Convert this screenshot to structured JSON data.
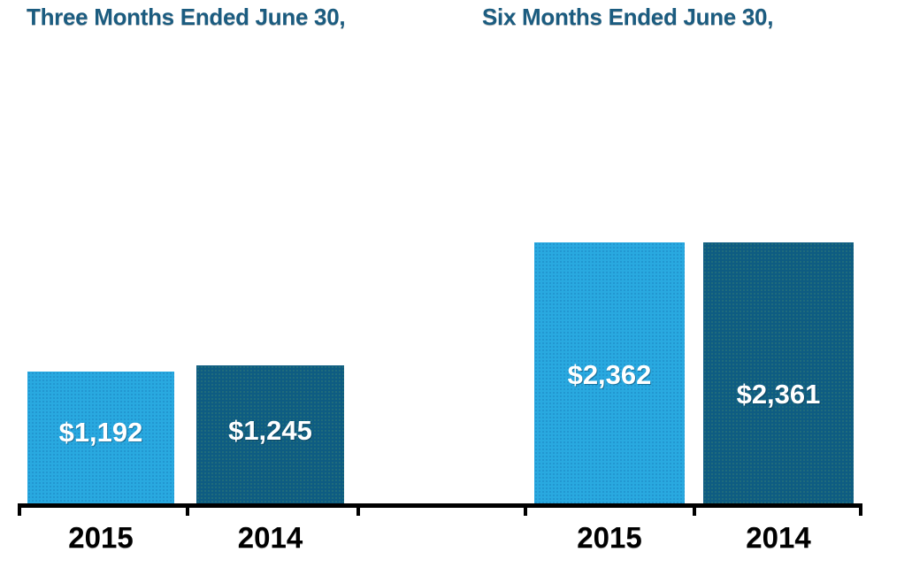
{
  "chart_data": {
    "type": "bar",
    "groups": [
      {
        "title": "Three Months Ended June 30,",
        "categories": [
          "2015",
          "2014"
        ],
        "bars": [
          {
            "label": "2015",
            "value": 1192,
            "display": "$1,192",
            "color_key": "light_blue"
          },
          {
            "label": "2014",
            "value": 1245,
            "display": "$1,245",
            "color_key": "dark_blue"
          }
        ]
      },
      {
        "title": "Six Months Ended June 30,",
        "categories": [
          "2015",
          "2014"
        ],
        "bars": [
          {
            "label": "2015",
            "value": 2362,
            "display": "$2,362",
            "color_key": "light_blue"
          },
          {
            "label": "2014",
            "value": 2361,
            "display": "$2,361",
            "color_key": "dark_blue"
          }
        ]
      }
    ],
    "colors": {
      "light_blue": "#29A9E0",
      "dark_blue": "#0E5C82",
      "title_text": "#1B5C80",
      "axis": "#000000",
      "value_label_text": "#FFFFFF",
      "category_label_text": "#000000",
      "background": "#FFFFFF"
    },
    "value_prefix": "$",
    "ylim": [
      0,
      2550
    ],
    "grid": false,
    "legend": "none",
    "xlabel": "",
    "ylabel": ""
  }
}
